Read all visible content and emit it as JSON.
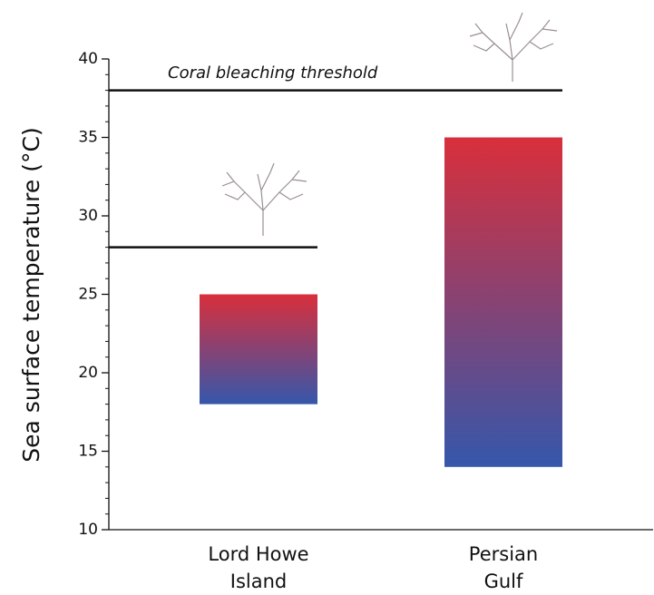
{
  "chart_data": {
    "type": "range-bar",
    "y_label": "Sea surface temperature (°C)",
    "annotation": "Coral bleaching threshold",
    "categories": [
      "Lord Howe\nIsland",
      "Persian\nGulf"
    ],
    "low": [
      18,
      14
    ],
    "high": [
      25,
      35
    ],
    "thresholds": [
      28,
      38
    ],
    "gradient_colors": [
      "#d92f3b",
      "#3557ab"
    ],
    "ylim": [
      10,
      40
    ],
    "yticks": [
      10,
      15,
      20,
      25,
      30,
      35,
      40
    ],
    "yminorticks": [
      11,
      12,
      13,
      14,
      16,
      17,
      18,
      19,
      21,
      22,
      23,
      24,
      26,
      27,
      28,
      29,
      31,
      32,
      33,
      34,
      36,
      37,
      38,
      39
    ]
  }
}
